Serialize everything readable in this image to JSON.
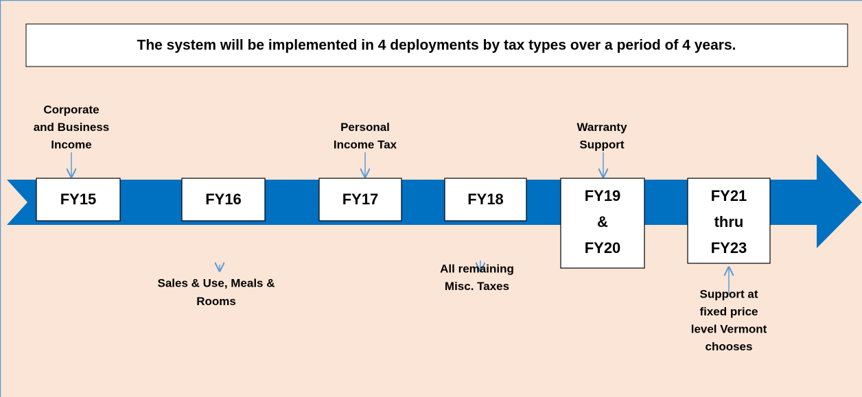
{
  "title": "The system will be implemented in 4 deployments by tax types over a period of 4 years.",
  "nodes": [
    {
      "lines": [
        "FY15"
      ],
      "note": [
        "Corporate",
        "and Business",
        "Income"
      ],
      "side": "above"
    },
    {
      "lines": [
        "FY16"
      ],
      "note": [
        "Sales & Use, Meals &",
        "Rooms"
      ],
      "side": "below"
    },
    {
      "lines": [
        "FY17"
      ],
      "note": [
        "Personal",
        "Income Tax"
      ],
      "side": "above"
    },
    {
      "lines": [
        "FY18"
      ],
      "note": [
        "All remaining",
        "Misc. Taxes"
      ],
      "side": "below"
    },
    {
      "lines": [
        "FY19",
        "&",
        "FY20"
      ],
      "note": [
        "Warranty",
        "Support"
      ],
      "side": "above"
    },
    {
      "lines": [
        "FY21",
        "thru",
        "FY23"
      ],
      "note": [
        "Support at",
        "fixed price",
        "level Vermont",
        "chooses"
      ],
      "side": "below"
    }
  ]
}
